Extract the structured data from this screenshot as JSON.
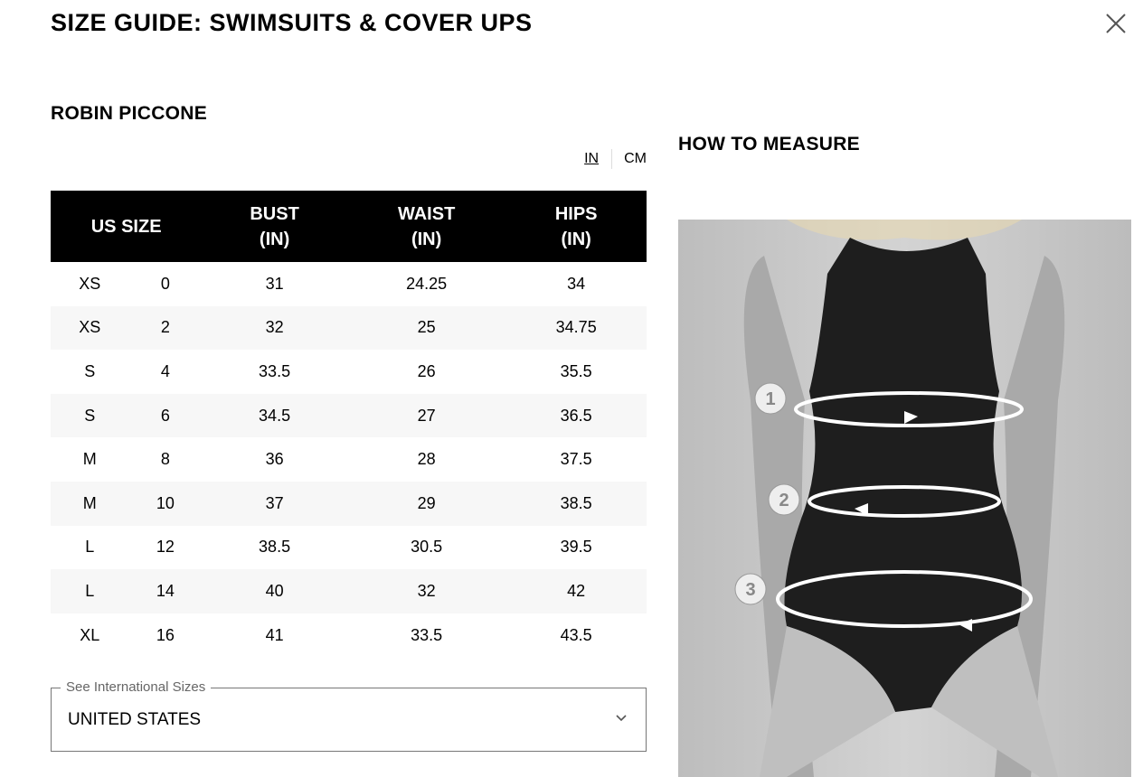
{
  "header": {
    "title": "SIZE GUIDE: SWIMSUITS & COVER UPS",
    "close_icon": "close-icon"
  },
  "brand": "ROBIN PICCONE",
  "units": {
    "in_label": "IN",
    "cm_label": "CM",
    "selected": "IN"
  },
  "table": {
    "headers": [
      {
        "line1": "US SIZE",
        "line2": ""
      },
      {
        "line1": "BUST",
        "line2": "(IN)"
      },
      {
        "line1": "WAIST",
        "line2": "(IN)"
      },
      {
        "line1": "HIPS",
        "line2": "(IN)"
      }
    ],
    "rows": [
      [
        "XS",
        "0",
        "31",
        "24.25",
        "34"
      ],
      [
        "XS",
        "2",
        "32",
        "25",
        "34.75"
      ],
      [
        "S",
        "4",
        "33.5",
        "26",
        "35.5"
      ],
      [
        "S",
        "6",
        "34.5",
        "27",
        "36.5"
      ],
      [
        "M",
        "8",
        "36",
        "28",
        "37.5"
      ],
      [
        "M",
        "10",
        "37",
        "29",
        "38.5"
      ],
      [
        "L",
        "12",
        "38.5",
        "30.5",
        "39.5"
      ],
      [
        "L",
        "14",
        "40",
        "32",
        "42"
      ],
      [
        "XL",
        "16",
        "41",
        "33.5",
        "43.5"
      ]
    ]
  },
  "international": {
    "legend": "See International Sizes",
    "value": "UNITED STATES",
    "icon": "chevron-down-icon"
  },
  "how_to_measure": {
    "title": "HOW TO MEASURE",
    "markers": [
      "1",
      "2",
      "3"
    ]
  }
}
